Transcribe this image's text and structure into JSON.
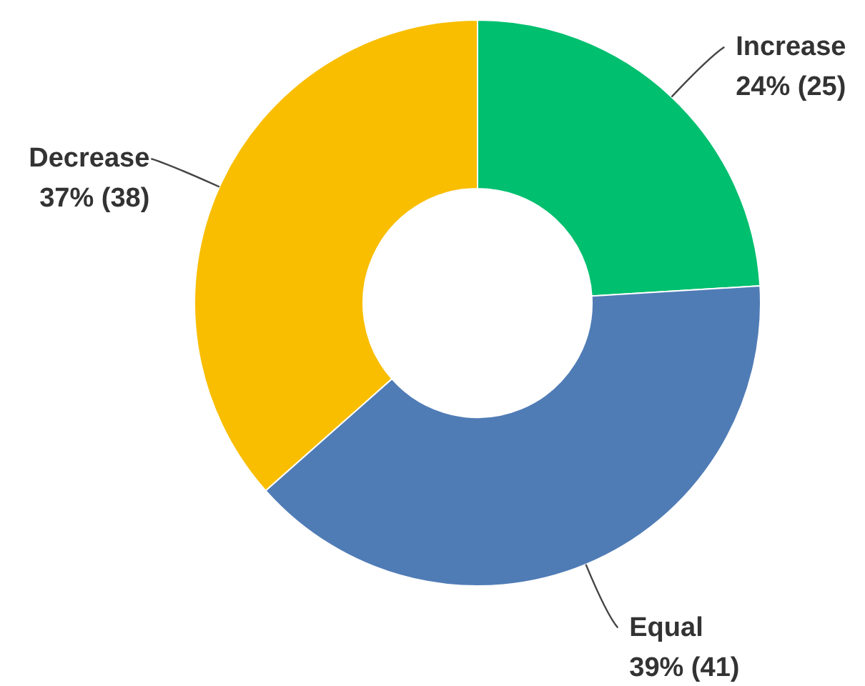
{
  "chart_data": {
    "type": "donut",
    "categories": [
      "Increase",
      "Equal",
      "Decrease"
    ],
    "values": [
      25,
      41,
      38
    ],
    "colors": [
      "#00bf6f",
      "#507cb6",
      "#f9be00"
    ],
    "value_labels": [
      "24% (25)",
      "39% (41)",
      "37% (38)"
    ]
  }
}
